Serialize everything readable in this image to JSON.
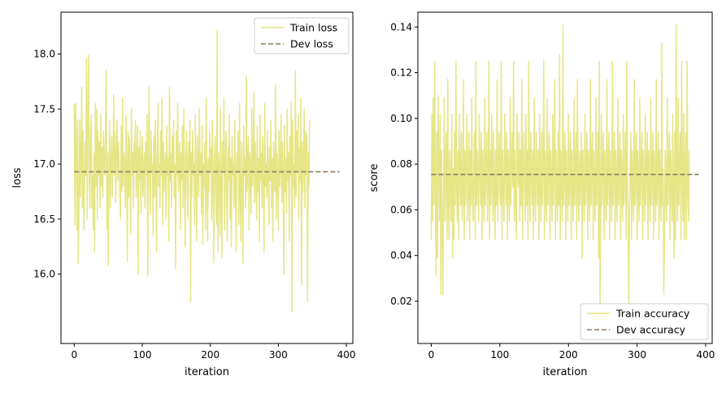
{
  "chart_data": [
    {
      "type": "line",
      "title": "",
      "xlabel": "iteration",
      "ylabel": "loss",
      "xlim": [
        -19.5,
        409.5
      ],
      "ylim": [
        15.37,
        18.38
      ],
      "xticks": [
        0,
        100,
        200,
        300,
        400
      ],
      "yticks": [
        16.0,
        16.5,
        17.0,
        17.5,
        18.0
      ],
      "ytick_decimals": 1,
      "grid": false,
      "legend_position": "top-right",
      "colors": {
        "train": "#e3e37a",
        "dev": "#8c7e64"
      },
      "series": [
        {
          "name": "Train loss",
          "style": "solid",
          "x_start": 0,
          "x_step": 1,
          "values": [
            17.55,
            16.45,
            17.55,
            17.2,
            16.4,
            17.4,
            16.1,
            16.6,
            17.4,
            16.7,
            17.1,
            17.7,
            16.6,
            17.3,
            16.4,
            16.8,
            17.2,
            16.9,
            17.95,
            16.5,
            17.45,
            17.99,
            16.9,
            16.6,
            17.3,
            17.45,
            16.6,
            16.9,
            16.4,
            17.1,
            16.2,
            17.55,
            16.8,
            17.5,
            16.5,
            17.3,
            16.9,
            17.2,
            16.6,
            17.45,
            16.8,
            17.15,
            16.7,
            17.3,
            17.0,
            16.9,
            17.35,
            17.85,
            16.4,
            17.1,
            16.08,
            16.9,
            17.4,
            16.6,
            17.0,
            17.25,
            16.7,
            17.05,
            17.63,
            16.9,
            17.3,
            16.65,
            17.1,
            17.4,
            16.85,
            17.2,
            17.0,
            16.7,
            16.5,
            17.35,
            16.75,
            17.6,
            16.8,
            17.1,
            17.0,
            16.6,
            17.45,
            16.95,
            16.12,
            17.3,
            16.7,
            17.25,
            16.8,
            16.36,
            17.5,
            16.9,
            17.1,
            16.6,
            17.2,
            16.95,
            17.4,
            16.7,
            17.05,
            17.35,
            16.0,
            17.15,
            16.85,
            17.3,
            16.55,
            17.0,
            17.25,
            16.7,
            16.95,
            17.1,
            16.6,
            17.2,
            16.9,
            17.45,
            15.98,
            17.1,
            17.7,
            16.8,
            16.55,
            17.3,
            16.95,
            17.0,
            16.35,
            17.25,
            16.7,
            17.4,
            16.9,
            16.2,
            17.15,
            17.55,
            16.8,
            17.0,
            16.6,
            17.3,
            16.9,
            17.6,
            16.45,
            17.2,
            16.75,
            17.0,
            17.1,
            16.5,
            17.35,
            16.9,
            17.05,
            16.3,
            17.7,
            16.85,
            17.1,
            16.6,
            17.25,
            16.95,
            17.4,
            16.7,
            17.0,
            16.05,
            17.3,
            16.9,
            17.55,
            16.75,
            17.0,
            17.2,
            16.4,
            17.1,
            16.85,
            17.35,
            16.6,
            17.5,
            16.9,
            16.25,
            17.05,
            17.3,
            16.8,
            16.5,
            17.2,
            16.95,
            17.4,
            15.75,
            17.1,
            16.7,
            17.3,
            16.9,
            17.0,
            16.45,
            17.45,
            16.8,
            16.3,
            17.25,
            16.95,
            16.7,
            17.5,
            16.9,
            17.1,
            16.55,
            17.35,
            16.27,
            17.0,
            16.8,
            17.2,
            16.4,
            17.6,
            16.9,
            16.3,
            17.05,
            16.75,
            17.3,
            16.95,
            17.15,
            16.5,
            17.4,
            16.85,
            16.1,
            17.0,
            17.25,
            16.7,
            16.45,
            18.22,
            16.2,
            17.1,
            16.9,
            16.35,
            17.5,
            16.8,
            16.15,
            17.2,
            16.95,
            17.6,
            16.4,
            17.0,
            17.3,
            16.7,
            16.3,
            17.15,
            16.85,
            17.45,
            16.5,
            17.05,
            16.25,
            17.25,
            16.9,
            17.0,
            16.6,
            17.4,
            16.8,
            16.2,
            17.1,
            16.95,
            17.3,
            16.45,
            17.55,
            16.7,
            16.3,
            17.2,
            16.85,
            16.1,
            17.35,
            16.9,
            17.05,
            16.6,
            17.8,
            16.75,
            17.0,
            17.25,
            16.4,
            17.1,
            16.95,
            16.55,
            17.5,
            16.8,
            17.0,
            17.65,
            16.65,
            17.2,
            16.9,
            16.5,
            17.35,
            16.75,
            17.05,
            16.3,
            17.45,
            16.85,
            17.1,
            16.6,
            17.25,
            16.95,
            16.2,
            17.55,
            16.8,
            17.0,
            16.7,
            17.3,
            16.9,
            16.45,
            17.15,
            16.85,
            17.4,
            16.6,
            17.05,
            16.3,
            17.2,
            16.95,
            16.75,
            17.72,
            16.5,
            17.1,
            16.9,
            16.4,
            17.3,
            16.8,
            17.0,
            17.45,
            16.65,
            17.2,
            16.95,
            16.0,
            17.35,
            16.75,
            17.05,
            16.55,
            17.5,
            16.85,
            17.1,
            16.3,
            17.25,
            16.9,
            17.57,
            15.66,
            17.4,
            16.8,
            17.0,
            16.6,
            17.85,
            16.7,
            17.3,
            16.95,
            17.45,
            16.5,
            17.15,
            16.85,
            17.6,
            15.9,
            17.2,
            16.75,
            17.0,
            17.5,
            16.6,
            17.3,
            16.9,
            17.27,
            15.75,
            17.1,
            16.8,
            17.4
          ]
        },
        {
          "name": "Dev loss",
          "style": "dashed",
          "x": [
            0,
            390
          ],
          "values": [
            16.93,
            16.93
          ]
        }
      ]
    },
    {
      "type": "line",
      "title": "",
      "xlabel": "iteration",
      "ylabel": "score",
      "xlim": [
        -19.5,
        409.5
      ],
      "ylim": [
        0.0015,
        0.1465
      ],
      "xticks": [
        0,
        100,
        200,
        300,
        400
      ],
      "yticks": [
        0.02,
        0.04,
        0.06,
        0.08,
        0.1,
        0.12,
        0.14
      ],
      "ytick_decimals": 2,
      "grid": false,
      "legend_position": "bottom-right",
      "colors": {
        "train": "#e3e37a",
        "dev": "#8c7e64"
      },
      "series": [
        {
          "name": "Train accuracy",
          "style": "solid",
          "x_start": 0,
          "x_step": 1,
          "values": [
            0.047,
            0.102,
            0.055,
            0.109,
            0.062,
            0.125,
            0.07,
            0.031,
            0.094,
            0.039,
            0.11,
            0.078,
            0.055,
            0.102,
            0.023,
            0.086,
            0.047,
            0.023,
            0.07,
            0.109,
            0.055,
            0.078,
            0.094,
            0.047,
            0.117,
            0.062,
            0.047,
            0.086,
            0.07,
            0.055,
            0.102,
            0.039,
            0.078,
            0.047,
            0.094,
            0.062,
            0.125,
            0.07,
            0.055,
            0.086,
            0.047,
            0.102,
            0.078,
            0.062,
            0.094,
            0.055,
            0.07,
            0.117,
            0.047,
            0.086,
            0.062,
            0.078,
            0.102,
            0.055,
            0.07,
            0.094,
            0.047,
            0.086,
            0.062,
            0.109,
            0.07,
            0.055,
            0.078,
            0.094,
            0.047,
            0.125,
            0.062,
            0.086,
            0.07,
            0.055,
            0.102,
            0.078,
            0.062,
            0.094,
            0.047,
            0.086,
            0.07,
            0.055,
            0.109,
            0.062,
            0.078,
            0.094,
            0.055,
            0.07,
            0.125,
            0.047,
            0.086,
            0.062,
            0.102,
            0.078,
            0.055,
            0.094,
            0.07,
            0.047,
            0.086,
            0.062,
            0.117,
            0.055,
            0.078,
            0.094,
            0.07,
            0.062,
            0.125,
            0.047,
            0.086,
            0.07,
            0.055,
            0.102,
            0.078,
            0.062,
            0.094,
            0.047,
            0.086,
            0.07,
            0.055,
            0.109,
            0.062,
            0.078,
            0.094,
            0.07,
            0.125,
            0.055,
            0.086,
            0.062,
            0.047,
            0.102,
            0.078,
            0.07,
            0.094,
            0.055,
            0.086,
            0.062,
            0.117,
            0.047,
            0.078,
            0.094,
            0.07,
            0.055,
            0.102,
            0.062,
            0.086,
            0.047,
            0.125,
            0.07,
            0.055,
            0.094,
            0.078,
            0.062,
            0.086,
            0.047,
            0.109,
            0.07,
            0.055,
            0.094,
            0.078,
            0.062,
            0.086,
            0.047,
            0.102,
            0.07,
            0.055,
            0.094,
            0.062,
            0.078,
            0.125,
            0.047,
            0.086,
            0.07,
            0.055,
            0.109,
            0.062,
            0.078,
            0.094,
            0.047,
            0.086,
            0.07,
            0.055,
            0.102,
            0.062,
            0.078,
            0.117,
            0.047,
            0.086,
            0.07,
            0.055,
            0.094,
            0.062,
            0.128,
            0.047,
            0.086,
            0.07,
            0.055,
            0.141,
            0.062,
            0.078,
            0.094,
            0.047,
            0.086,
            0.07,
            0.055,
            0.102,
            0.062,
            0.078,
            0.094,
            0.047,
            0.086,
            0.07,
            0.055,
            0.109,
            0.062,
            0.078,
            0.094,
            0.047,
            0.117,
            0.07,
            0.055,
            0.086,
            0.062,
            0.078,
            0.094,
            0.039,
            0.086,
            0.07,
            0.055,
            0.102,
            0.062,
            0.078,
            0.094,
            0.047,
            0.086,
            0.07,
            0.055,
            0.117,
            0.062,
            0.078,
            0.094,
            0.047,
            0.086,
            0.07,
            0.055,
            0.109,
            0.062,
            0.078,
            0.094,
            0.039,
            0.125,
            0.016,
            0.055,
            0.102,
            0.062,
            0.078,
            0.094,
            0.047,
            0.086,
            0.07,
            0.055,
            0.117,
            0.062,
            0.078,
            0.094,
            0.047,
            0.086,
            0.07,
            0.055,
            0.125,
            0.062,
            0.078,
            0.094,
            0.047,
            0.086,
            0.07,
            0.055,
            0.109,
            0.062,
            0.078,
            0.094,
            0.047,
            0.086,
            0.07,
            0.055,
            0.102,
            0.062,
            0.078,
            0.094,
            0.047,
            0.125,
            0.07,
            0.055,
            0.016,
            0.062,
            0.078,
            0.094,
            0.047,
            0.086,
            0.07,
            0.055,
            0.117,
            0.062,
            0.078,
            0.094,
            0.047,
            0.086,
            0.07,
            0.055,
            0.109,
            0.062,
            0.078,
            0.094,
            0.047,
            0.086,
            0.07,
            0.055,
            0.102,
            0.062,
            0.078,
            0.094,
            0.047,
            0.086,
            0.07,
            0.055,
            0.109,
            0.062,
            0.078,
            0.094,
            0.047,
            0.086,
            0.07,
            0.055,
            0.117,
            0.062,
            0.078,
            0.094,
            0.047,
            0.086,
            0.07,
            0.055,
            0.133,
            0.062,
            0.078,
            0.023,
            0.047,
            0.086,
            0.07,
            0.055,
            0.109,
            0.062,
            0.078,
            0.094,
            0.047,
            0.086,
            0.07,
            0.055,
            0.102,
            0.062,
            0.039,
            0.094,
            0.047,
            0.141,
            0.07,
            0.055,
            0.109,
            0.062,
            0.078,
            0.094,
            0.047,
            0.125,
            0.07,
            0.055,
            0.102,
            0.047,
            0.078,
            0.094,
            0.047,
            0.125,
            0.07,
            0.055,
            0.086
          ]
        },
        {
          "name": "Dev accuracy",
          "style": "dashed",
          "x": [
            0,
            390
          ],
          "values": [
            0.0755,
            0.0755
          ]
        }
      ]
    }
  ]
}
